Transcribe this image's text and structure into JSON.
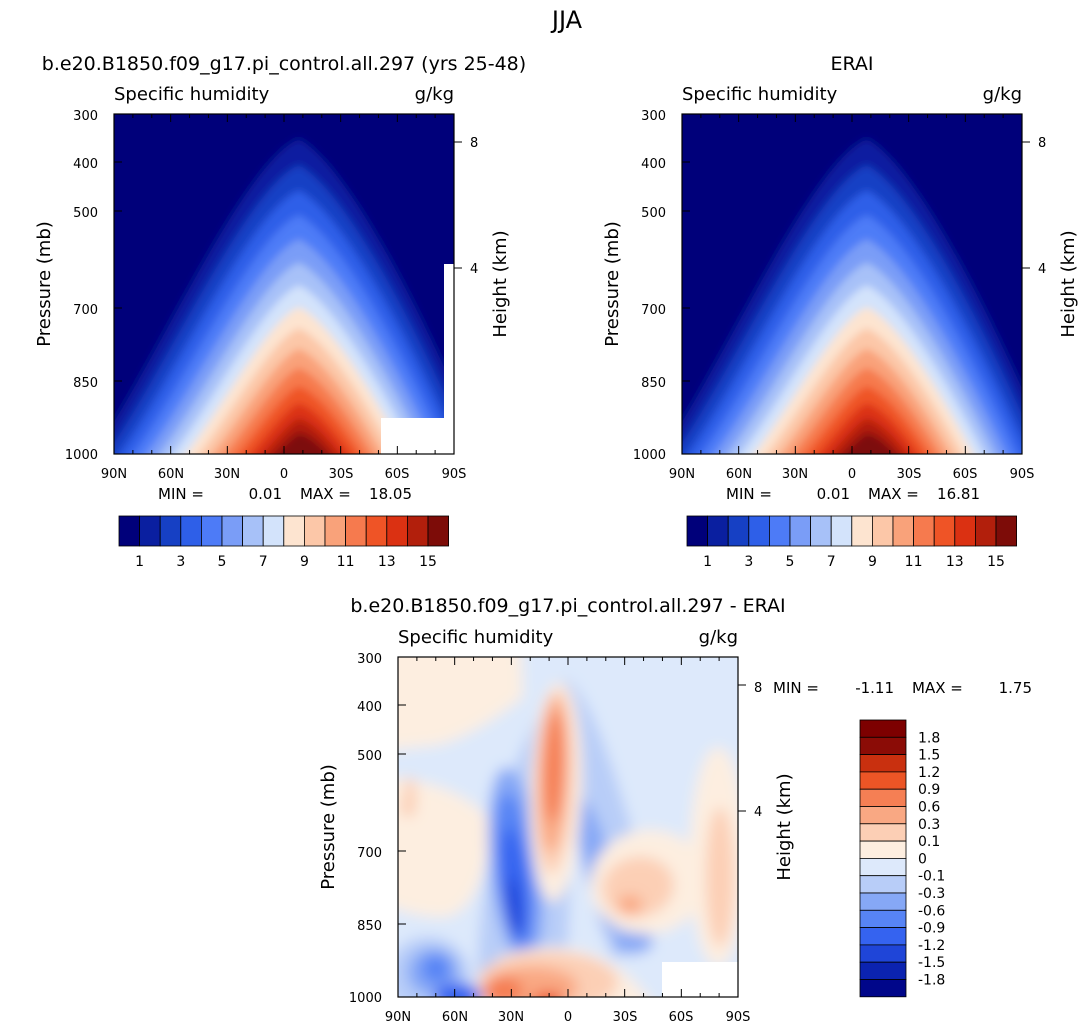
{
  "figure_title": "JJA",
  "colors": {
    "seq": [
      "#00007a",
      "#0a1fa0",
      "#1640c4",
      "#2e5fe8",
      "#4d7bf7",
      "#7a9df7",
      "#a7c1f8",
      "#d3e3fb",
      "#fde4d0",
      "#fcc7a8",
      "#f9a27a",
      "#f67a4e",
      "#ef5426",
      "#db3112",
      "#b21f0c",
      "#7d0c08"
    ],
    "diff": [
      "#00068a",
      "#0b23b0",
      "#1f45d8",
      "#3563f0",
      "#5784f5",
      "#86a8f6",
      "#b8cdf8",
      "#dde9fb",
      "#fdeee0",
      "#fccfb5",
      "#f9a883",
      "#f57f54",
      "#ec5526",
      "#c9300f",
      "#8b0c06"
    ]
  },
  "chart_data": [
    {
      "type": "contour",
      "panel_title": "b.e20.B1850.f09_g17.pi_control.all.297 (yrs 25-48)",
      "left_label": "Specific humidity",
      "right_label": "g/kg",
      "ylabel": "Pressure (mb)",
      "y2label": "Height (km)",
      "x_ticks": [
        "90N",
        "60N",
        "30N",
        "0",
        "30S",
        "60S",
        "90S"
      ],
      "y_ticks": [
        "300",
        "400",
        "500",
        "700",
        "850",
        "1000"
      ],
      "y2_ticks": [
        "8",
        "4"
      ],
      "min_label": "MIN =",
      "min": "0.01",
      "max_label": "MAX =",
      "max": "18.05",
      "peak_lat": -10,
      "max_value": 18.05,
      "colorbar_ticks": [
        "1",
        "3",
        "5",
        "7",
        "9",
        "11",
        "13",
        "15"
      ],
      "missing_region": true
    },
    {
      "type": "contour",
      "panel_title": "ERAI",
      "left_label": "Specific humidity",
      "right_label": "g/kg",
      "ylabel": "Pressure (mb)",
      "y2label": "Height (km)",
      "x_ticks": [
        "90N",
        "60N",
        "30N",
        "0",
        "30S",
        "60S",
        "90S"
      ],
      "y_ticks": [
        "300",
        "400",
        "500",
        "700",
        "850",
        "1000"
      ],
      "y2_ticks": [
        "8",
        "4"
      ],
      "min_label": "MIN =",
      "min": "0.01",
      "max_label": "MAX =",
      "max": "16.81",
      "peak_lat": -10,
      "max_value": 16.81,
      "colorbar_ticks": [
        "1",
        "3",
        "5",
        "7",
        "9",
        "11",
        "13",
        "15"
      ],
      "missing_region": false
    },
    {
      "type": "contour",
      "panel_title": "b.e20.B1850.f09_g17.pi_control.all.297 - ERAI",
      "left_label": "Specific humidity",
      "right_label": "g/kg",
      "ylabel": "Pressure (mb)",
      "y2label": "Height (km)",
      "x_ticks": [
        "90N",
        "60N",
        "30N",
        "0",
        "30S",
        "60S",
        "90S"
      ],
      "y_ticks": [
        "300",
        "400",
        "500",
        "700",
        "850",
        "1000"
      ],
      "y2_ticks": [
        "8",
        "4"
      ],
      "min_label": "MIN =",
      "min": "-1.11",
      "max_label": "MAX =",
      "max": "1.75",
      "colorbar_ticks": [
        "1.8",
        "1.5",
        "1.2",
        "0.9",
        "0.6",
        "0.3",
        "0.1",
        "0",
        "-0.1",
        "-0.3",
        "-0.6",
        "-0.9",
        "-1.2",
        "-1.5",
        "-1.8"
      ]
    }
  ]
}
